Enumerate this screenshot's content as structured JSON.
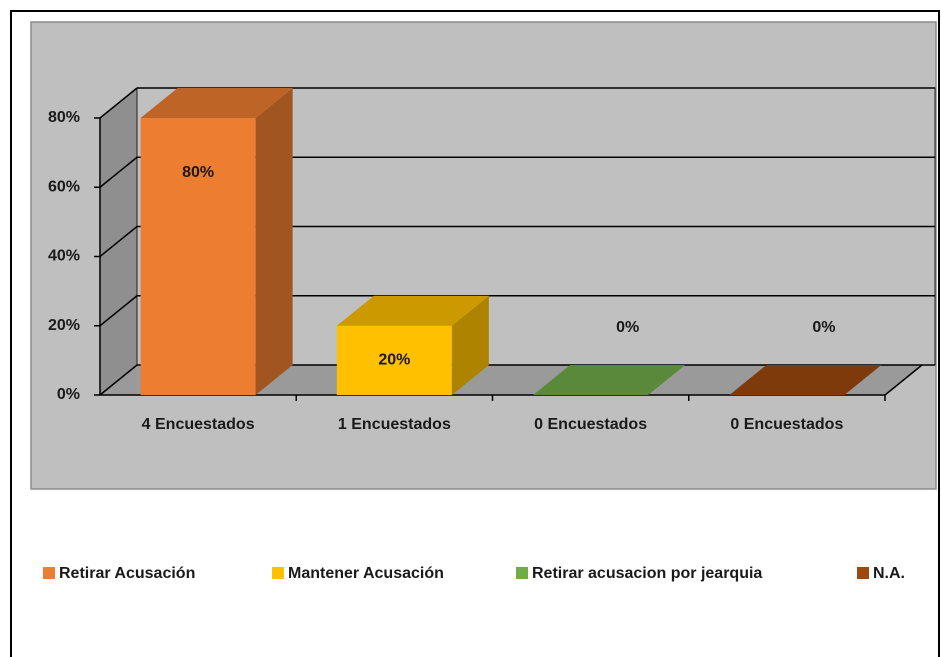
{
  "chart_data": {
    "type": "bar3d",
    "categories": [
      "4 Encuestados",
      "1 Encuestados",
      "0 Encuestados",
      "0 Encuestados"
    ],
    "series": [
      {
        "name": "Retirar Acusación",
        "color": "#ED7D31",
        "values": [
          80,
          null,
          null,
          null
        ],
        "value_labels": [
          "80%",
          null,
          null,
          null
        ]
      },
      {
        "name": "Mantener Acusación",
        "color": "#FFC000",
        "values": [
          null,
          20,
          null,
          null
        ],
        "value_labels": [
          null,
          "20%",
          null,
          null
        ]
      },
      {
        "name": "Retirar acusacion por jearquia",
        "color": "#70AD47",
        "values": [
          null,
          null,
          0,
          null
        ],
        "value_labels": [
          null,
          null,
          "0%",
          null
        ]
      },
      {
        "name": "N.A.",
        "color": "#9E480E",
        "values": [
          null,
          null,
          null,
          0
        ],
        "value_labels": [
          null,
          null,
          null,
          "0%"
        ]
      }
    ],
    "ylim": [
      0,
      80
    ],
    "yticks": [
      {
        "value": 0,
        "label": "0%"
      },
      {
        "value": 20,
        "label": "20%"
      },
      {
        "value": 40,
        "label": "40%"
      },
      {
        "value": 60,
        "label": "60%"
      },
      {
        "value": 80,
        "label": "80%"
      }
    ],
    "grid": true,
    "legend": "bottom"
  }
}
